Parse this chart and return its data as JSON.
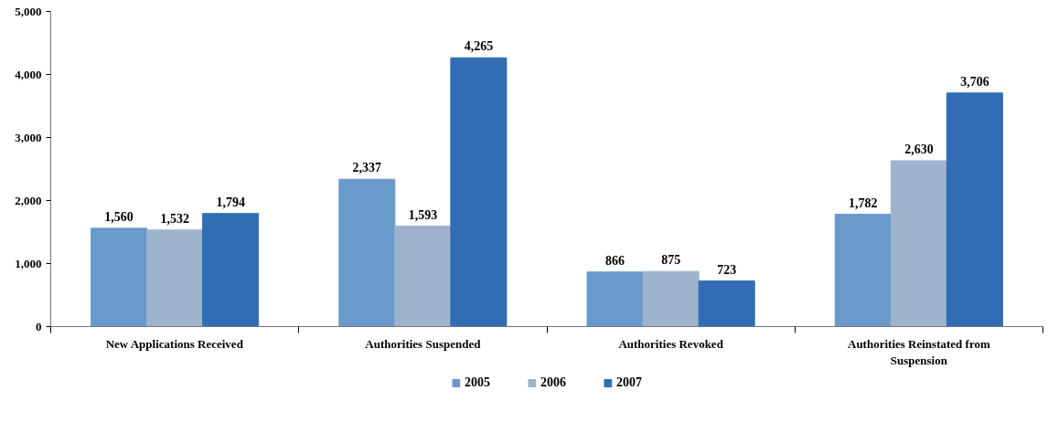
{
  "chart_data": {
    "type": "bar",
    "categories": [
      "New Applications Received",
      "Authorities Suspended",
      "Authorities Revoked",
      "Authorities Reinstated from Suspension"
    ],
    "series": [
      {
        "name": "2005",
        "color": "#6a99cb",
        "values": [
          1560,
          2337,
          866,
          1782
        ],
        "value_labels": [
          "1,560",
          "2,337",
          "866",
          "1,782"
        ]
      },
      {
        "name": "2006",
        "color": "#9eb3cc",
        "values": [
          1532,
          1593,
          875,
          2630
        ],
        "value_labels": [
          "1,532",
          "1,593",
          "875",
          "2,630"
        ]
      },
      {
        "name": "2007",
        "color": "#316db5",
        "values": [
          1794,
          4265,
          723,
          3706
        ],
        "value_labels": [
          "1,794",
          "4,265",
          "723",
          "3,706"
        ]
      }
    ],
    "ylim": [
      0,
      5000
    ],
    "yticks": [
      {
        "value": 0,
        "label": "0"
      },
      {
        "value": 1000,
        "label": "1,000"
      },
      {
        "value": 2000,
        "label": "2,000"
      },
      {
        "value": 3000,
        "label": "3,000"
      },
      {
        "value": 4000,
        "label": "4,000"
      },
      {
        "value": 5000,
        "label": "5,000"
      }
    ],
    "grid": false,
    "legend": "bottom"
  }
}
